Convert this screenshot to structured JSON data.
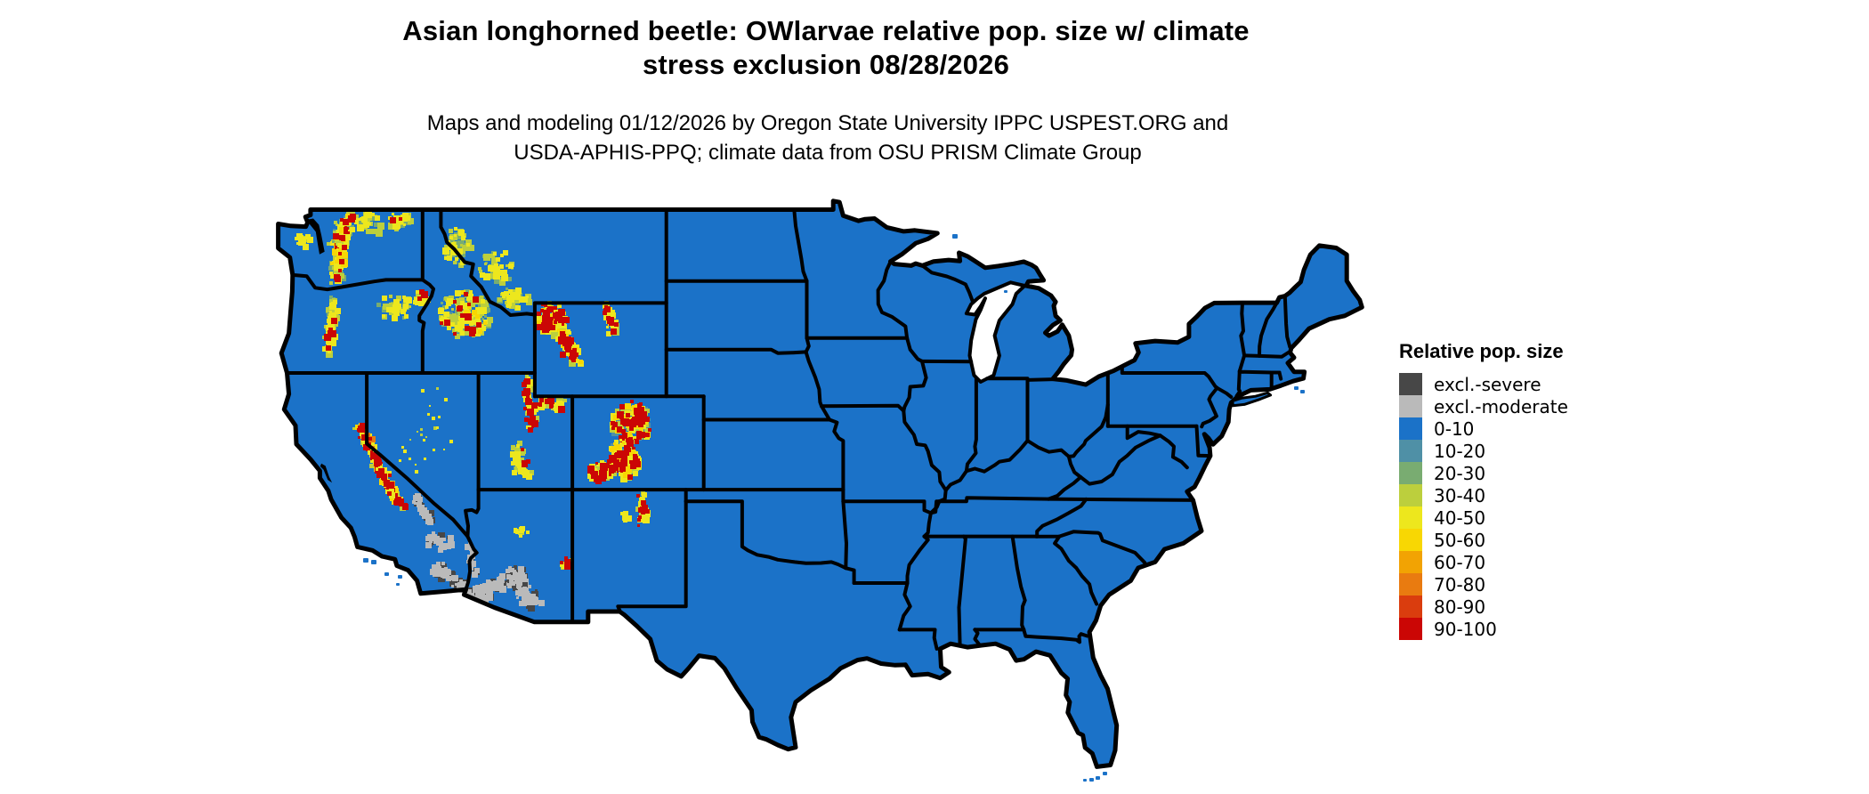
{
  "title": {
    "line1": "Asian longhorned beetle: OWlarvae relative pop. size w/ climate",
    "line2": "stress exclusion 08/28/2026"
  },
  "subtitle": {
    "line1": "Maps and modeling 01/12/2026 by Oregon State University IPPC USPEST.ORG and",
    "line2": "USDA-APHIS-PPQ; climate data from OSU PRISM Climate Group"
  },
  "legend": {
    "title": "Relative pop. size",
    "items": [
      {
        "label": "excl.-severe",
        "color": "#474747"
      },
      {
        "label": "excl.-moderate",
        "color": "#BABABA"
      },
      {
        "label": "0-10",
        "color": "#1B72C8"
      },
      {
        "label": "10-20",
        "color": "#4F90A6"
      },
      {
        "label": "20-30",
        "color": "#79AC71"
      },
      {
        "label": "30-40",
        "color": "#BCCF3D"
      },
      {
        "label": "40-50",
        "color": "#EDE71D"
      },
      {
        "label": "50-60",
        "color": "#F8D703"
      },
      {
        "label": "60-70",
        "color": "#F2A303"
      },
      {
        "label": "70-80",
        "color": "#E97B10"
      },
      {
        "label": "80-90",
        "color": "#DA3D0E"
      },
      {
        "label": "90-100",
        "color": "#CB0605"
      }
    ]
  },
  "map": {
    "land_color": "#1B72C8",
    "border_color": "#000000",
    "water_color": "#FFFFFF"
  }
}
